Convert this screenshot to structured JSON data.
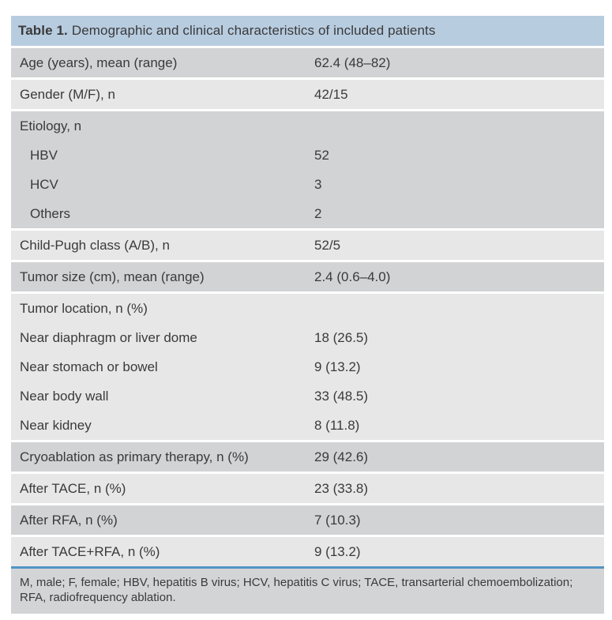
{
  "table": {
    "title_prefix": "Table 1.",
    "title_text": "Demographic and clinical characteristics of included patients",
    "bands": [
      {
        "shade": "dark",
        "lines": [
          {
            "label": "Age (years), mean (range)",
            "value": "62.4 (48–82)",
            "indent": false
          }
        ]
      },
      {
        "shade": "light",
        "lines": [
          {
            "label": "Gender (M/F), n",
            "value": "42/15",
            "indent": false
          }
        ]
      },
      {
        "shade": "dark",
        "lines": [
          {
            "label": "Etiology, n",
            "value": "",
            "indent": false
          },
          {
            "label": "HBV",
            "value": "52",
            "indent": true
          },
          {
            "label": "HCV",
            "value": "3",
            "indent": true
          },
          {
            "label": "Others",
            "value": "2",
            "indent": true
          }
        ]
      },
      {
        "shade": "light",
        "lines": [
          {
            "label": "Child-Pugh class (A/B), n",
            "value": "52/5",
            "indent": false
          }
        ]
      },
      {
        "shade": "dark",
        "lines": [
          {
            "label": "Tumor size (cm), mean (range)",
            "value": "2.4 (0.6–4.0)",
            "indent": false
          }
        ]
      },
      {
        "shade": "light",
        "lines": [
          {
            "label": "Tumor location, n (%)",
            "value": "",
            "indent": false
          },
          {
            "label": "Near diaphragm or liver dome",
            "value": "18 (26.5)",
            "indent": false
          },
          {
            "label": "Near stomach or bowel",
            "value": "9 (13.2)",
            "indent": false
          },
          {
            "label": "Near body wall",
            "value": "33 (48.5)",
            "indent": false
          },
          {
            "label": "Near kidney",
            "value": "8 (11.8)",
            "indent": false
          }
        ]
      },
      {
        "shade": "dark",
        "lines": [
          {
            "label": "Cryoablation as primary therapy, n (%)",
            "value": "29 (42.6)",
            "indent": false
          }
        ]
      },
      {
        "shade": "light",
        "lines": [
          {
            "label": "After TACE, n (%)",
            "value": "23 (33.8)",
            "indent": false
          }
        ]
      },
      {
        "shade": "dark",
        "lines": [
          {
            "label": "After RFA, n (%)",
            "value": "7 (10.3)",
            "indent": false
          }
        ]
      },
      {
        "shade": "light",
        "lines": [
          {
            "label": "After TACE+RFA, n (%)",
            "value": "9 (13.2)",
            "indent": false
          }
        ]
      }
    ],
    "footnote": "M, male; F, female; HBV, hepatitis B virus; HCV, hepatitis C virus; TACE, transarterial chemoembolization; RFA, radiofrequency ablation.",
    "colors": {
      "header_bg": "#b8cce0",
      "row_dark": "#d2d3d4",
      "row_light": "#e7e7e8",
      "footer_bg": "#d3d4d5",
      "accent_line": "#5295c4",
      "text": "#3a3a3a"
    }
  }
}
